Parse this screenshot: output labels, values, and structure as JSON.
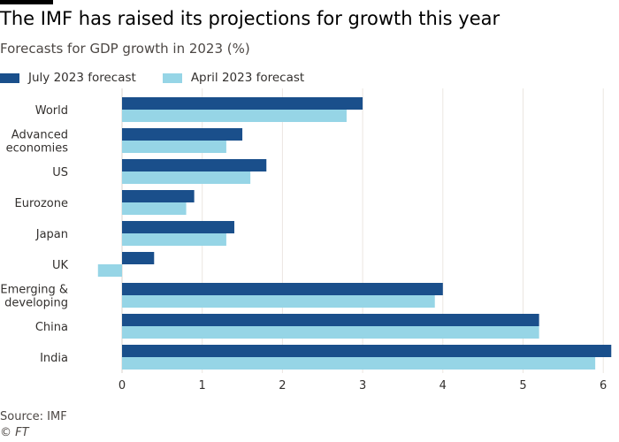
{
  "chart_data": {
    "type": "bar",
    "orientation": "horizontal",
    "title": "The IMF has raised its projections for growth this year",
    "subtitle": "Forecasts for GDP growth in 2023 (%)",
    "categories": [
      [
        "World"
      ],
      [
        "Advanced",
        "economies"
      ],
      [
        "US"
      ],
      [
        "Eurozone"
      ],
      [
        "Japan"
      ],
      [
        "UK"
      ],
      [
        "Emerging &",
        "developing"
      ],
      [
        "China"
      ],
      [
        "India"
      ]
    ],
    "series": [
      {
        "name": "July 2023 forecast",
        "color": "#1a4f8b",
        "values": [
          3.0,
          1.5,
          1.8,
          0.9,
          1.4,
          0.4,
          4.0,
          5.2,
          6.1
        ]
      },
      {
        "name": "April 2023 forecast",
        "color": "#96d5e6",
        "values": [
          2.8,
          1.3,
          1.6,
          0.8,
          1.3,
          -0.3,
          3.9,
          5.2,
          5.9
        ]
      }
    ],
    "xlim": [
      -0.3,
      6.1
    ],
    "xticks": [
      0,
      1,
      2,
      3,
      4,
      5,
      6
    ],
    "grid": true,
    "legend": "top-left"
  },
  "source": "Source: IMF",
  "credit": "© FT"
}
